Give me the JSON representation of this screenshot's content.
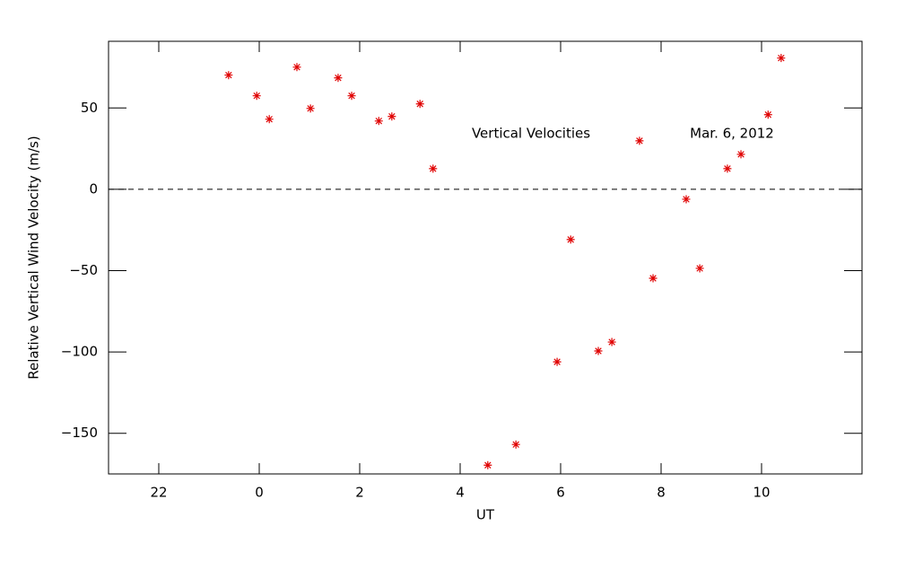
{
  "chart_data": {
    "type": "scatter",
    "xlabel": "UT",
    "ylabel": "Relative Vertical Wind Velocity (m/s)",
    "annotations": [
      "Vertical Velocities",
      "Mar. 6, 2012"
    ],
    "x": [
      -0.61,
      -0.05,
      0.2,
      0.75,
      1.02,
      1.57,
      1.84,
      2.38,
      2.64,
      3.2,
      3.46,
      4.55,
      5.11,
      5.93,
      6.2,
      6.75,
      7.02,
      7.57,
      7.84,
      8.5,
      8.77,
      9.32,
      9.59,
      10.13,
      10.39
    ],
    "values": [
      70.2,
      57.5,
      43.1,
      75.1,
      49.7,
      68.5,
      57.5,
      42.0,
      44.8,
      52.5,
      12.7,
      -169.6,
      -156.9,
      -106.1,
      -30.9,
      -99.4,
      -93.9,
      29.8,
      -54.7,
      -6.1,
      -48.6,
      12.7,
      21.5,
      45.9,
      80.7
    ],
    "color": "#e00000",
    "reference_line": 0,
    "xlim": [
      -3,
      12
    ],
    "xticks": [
      {
        "value": -2,
        "label": "22"
      },
      0,
      2,
      4,
      6,
      8,
      10
    ],
    "ylim": [
      -175,
      91
    ],
    "yticks": [
      {
        "value": -150,
        "label": "−150"
      },
      {
        "value": -100,
        "label": "−100"
      },
      {
        "value": -50,
        "label": "−50"
      },
      0,
      50
    ]
  }
}
